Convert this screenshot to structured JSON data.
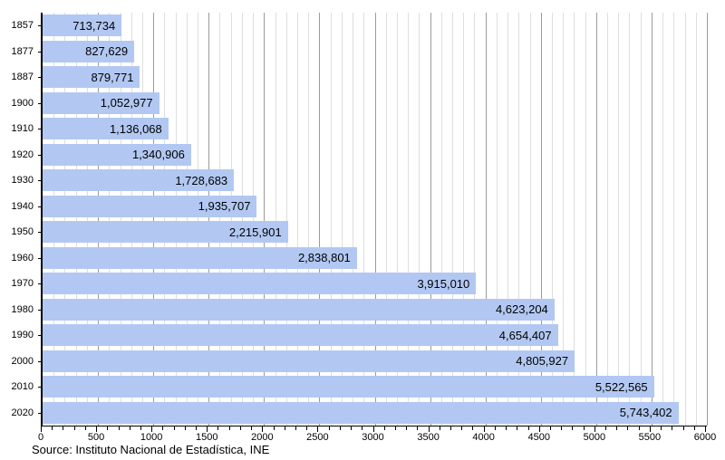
{
  "source_note": "Source: Instituto Nacional de Estadística, INE",
  "chart_data": {
    "type": "bar",
    "orientation": "horizontal",
    "title": "",
    "xlabel": "",
    "ylabel": "",
    "categories": [
      "1857",
      "1877",
      "1887",
      "1900",
      "1910",
      "1920",
      "1930",
      "1940",
      "1950",
      "1960",
      "1970",
      "1980",
      "1990",
      "2000",
      "2010",
      "2020"
    ],
    "values": [
      713734,
      827629,
      879771,
      1052977,
      1136068,
      1340906,
      1728683,
      1935707,
      2215901,
      2838801,
      3915010,
      4623204,
      4654407,
      4805927,
      5522565,
      5743402
    ],
    "value_labels": [
      "713,734",
      "827,629",
      "879,771",
      "1,052,977",
      "1,136,068",
      "1,340,906",
      "1,728,683",
      "1,935,707",
      "2,215,901",
      "2,838,801",
      "3,915,010",
      "4,623,204",
      "4,654,407",
      "4,805,927",
      "5,522,565",
      "5,743,402"
    ],
    "xlim": [
      0,
      6000
    ],
    "x_axis_unit": "thousands",
    "x_major_tick_interval": 500,
    "x_minor_tick_interval": 100,
    "x_tick_labels": [
      "0",
      "500",
      "1000",
      "1500",
      "2000",
      "2500",
      "3000",
      "3500",
      "4000",
      "4500",
      "5000",
      "5500",
      "6000"
    ],
    "grid": "vertical",
    "legend": "none",
    "colors": {
      "bar_fill": "#b2c8f2",
      "value_text": "#000000",
      "axis": "#000000",
      "grid_major": "#9b9b9b",
      "grid_minor": "#dedede",
      "background": "#ffffff"
    }
  }
}
